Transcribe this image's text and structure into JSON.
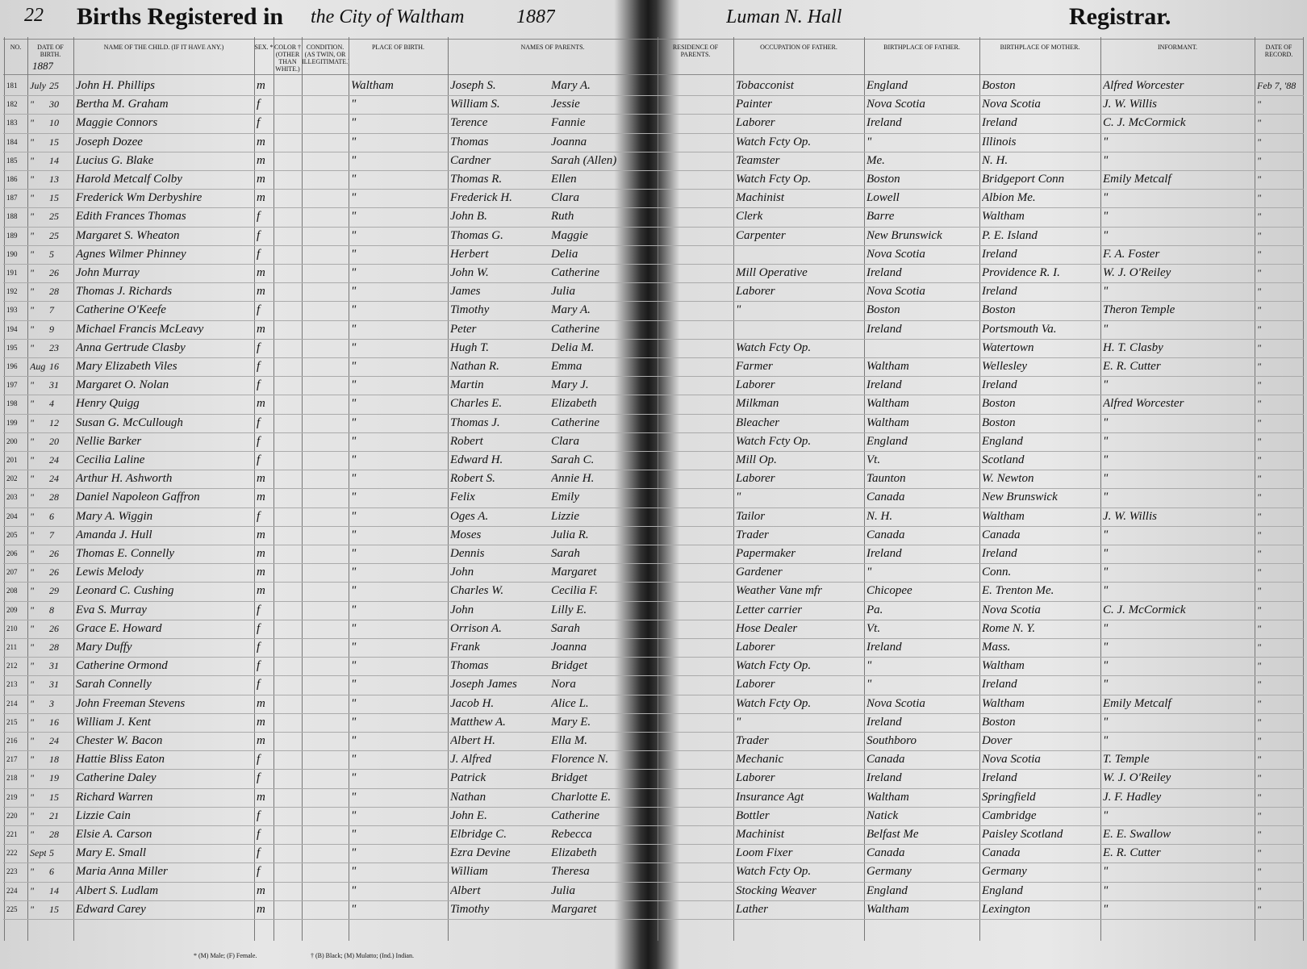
{
  "header": {
    "page_number": "22",
    "title": "Births Registered in",
    "title_city": "the City of Waltham",
    "year": "1887",
    "registrar_name": "Luman N. Hall",
    "registrar_label": "Registrar."
  },
  "table": {
    "columns": [
      "No.",
      "DATE OF BIRTH.",
      "NAME OF THE CHILD. (If it have any.)",
      "SEX. *",
      "COLOR † (other than white.)",
      "CONDITION. (As Twin, or Illegitimate.)",
      "PLACE OF BIRTH.",
      "NAMES OF PARENTS.",
      "RESIDENCE OF PARENTS.",
      "OCCUPATION OF FATHER.",
      "BIRTHPLACE OF FATHER.",
      "BIRTHPLACE OF MOTHER.",
      "INFORMANT.",
      "DATE OF RECORD."
    ],
    "year_note": "1887",
    "rows": [
      [
        "181",
        "July",
        "25",
        "John H. Phillips",
        "m",
        null,
        null,
        "Waltham",
        "Joseph S.",
        "Mary A.",
        null,
        "Tobacconist",
        "England",
        "Boston",
        "Alfred Worcester",
        "Feb 7, '88"
      ],
      [
        "182",
        "\"",
        "30",
        "Bertha M. Graham",
        "f",
        null,
        null,
        "\"",
        "William S.",
        "Jessie",
        null,
        "Painter",
        "Nova Scotia",
        "Nova Scotia",
        "J. W. Willis",
        "\""
      ],
      [
        "183",
        "\"",
        "10",
        "Maggie Connors",
        "f",
        null,
        null,
        "\"",
        "Terence",
        "Fannie",
        null,
        "Laborer",
        "Ireland",
        "Ireland",
        "C. J. McCormick",
        "\""
      ],
      [
        "184",
        "\"",
        "15",
        "Joseph Dozee",
        "m",
        null,
        null,
        "\"",
        "Thomas",
        "Joanna",
        null,
        "Watch Fcty Op.",
        "\"",
        "Illinois",
        "\"",
        "\""
      ],
      [
        "185",
        "\"",
        "14",
        "Lucius G. Blake",
        "m",
        null,
        null,
        "\"",
        "Cardner",
        "Sarah (Allen)",
        null,
        "Teamster",
        "Me.",
        "N. H.",
        "\"",
        "\""
      ],
      [
        "186",
        "\"",
        "13",
        "Harold Metcalf Colby",
        "m",
        null,
        null,
        "\"",
        "Thomas R.",
        "Ellen",
        null,
        "Watch Fcty Op.",
        "Boston",
        "Bridgeport Conn",
        "Emily Metcalf",
        "\""
      ],
      [
        "187",
        "\"",
        "15",
        "Frederick Wm Derbyshire",
        "m",
        null,
        null,
        "\"",
        "Frederick H.",
        "Clara",
        null,
        "Machinist",
        "Lowell",
        "Albion Me.",
        "\"",
        "\""
      ],
      [
        "188",
        "\"",
        "25",
        "Edith Frances Thomas",
        "f",
        null,
        null,
        "\"",
        "John B.",
        "Ruth",
        null,
        "Clerk",
        "Barre",
        "Waltham",
        "\"",
        "\""
      ],
      [
        "189",
        "\"",
        "25",
        "Margaret S. Wheaton",
        "f",
        null,
        null,
        "\"",
        "Thomas G.",
        "Maggie",
        null,
        "Carpenter",
        "New Brunswick",
        "P. E. Island",
        "\"",
        "\""
      ],
      [
        "190",
        "\"",
        "5",
        "Agnes Wilmer Phinney",
        "f",
        null,
        null,
        "\"",
        "Herbert",
        "Delia",
        null,
        null,
        "Nova Scotia",
        "Ireland",
        "F. A. Foster",
        "\""
      ],
      [
        "191",
        "\"",
        "26",
        "John Murray",
        "m",
        null,
        null,
        "\"",
        "John W.",
        "Catherine",
        null,
        "Mill Operative",
        "Ireland",
        "Providence R. I.",
        "W. J. O'Reiley",
        "\""
      ],
      [
        "192",
        "\"",
        "28",
        "Thomas J. Richards",
        "m",
        null,
        null,
        "\"",
        "James",
        "Julia",
        null,
        "Laborer",
        "Nova Scotia",
        "Ireland",
        "\"",
        "\""
      ],
      [
        "193",
        "\"",
        "7",
        "Catherine O'Keefe",
        "f",
        null,
        null,
        "\"",
        "Timothy",
        "Mary A.",
        null,
        "\"",
        "Boston",
        "Boston",
        "Theron Temple",
        "\""
      ],
      [
        "194",
        "\"",
        "9",
        "Michael Francis McLeavy",
        "m",
        null,
        null,
        "\"",
        "Peter",
        "Catherine",
        null,
        null,
        "Ireland",
        "Portsmouth Va.",
        "\"",
        "\""
      ],
      [
        "195",
        "\"",
        "23",
        "Anna Gertrude Clasby",
        "f",
        null,
        null,
        "\"",
        "Hugh T.",
        "Delia M.",
        null,
        "Watch Fcty Op.",
        null,
        "Watertown",
        "H. T. Clasby",
        "\""
      ],
      [
        "196",
        "Aug.",
        "16",
        "Mary Elizabeth Viles",
        "f",
        null,
        null,
        "\"",
        "Nathan R.",
        "Emma",
        null,
        "Farmer",
        "Waltham",
        "Wellesley",
        "E. R. Cutter",
        "\""
      ],
      [
        "197",
        "\"",
        "31",
        "Margaret O. Nolan",
        "f",
        null,
        null,
        "\"",
        "Martin",
        "Mary J.",
        null,
        "Laborer",
        "Ireland",
        "Ireland",
        "\"",
        "\""
      ],
      [
        "198",
        "\"",
        "4",
        "Henry Quigg",
        "m",
        null,
        null,
        "\"",
        "Charles E.",
        "Elizabeth",
        null,
        "Milkman",
        "Waltham",
        "Boston",
        "Alfred Worcester",
        "\""
      ],
      [
        "199",
        "\"",
        "12",
        "Susan G. McCullough",
        "f",
        null,
        null,
        "\"",
        "Thomas J.",
        "Catherine",
        null,
        "Bleacher",
        "Waltham",
        "Boston",
        "\"",
        "\""
      ],
      [
        "200",
        "\"",
        "20",
        "Nellie Barker",
        "f",
        null,
        null,
        "\"",
        "Robert",
        "Clara",
        null,
        "Watch Fcty Op.",
        "England",
        "England",
        "\"",
        "\""
      ],
      [
        "201",
        "\"",
        "24",
        "Cecilia Laline",
        "f",
        null,
        null,
        "\"",
        "Edward H.",
        "Sarah C.",
        null,
        "Mill Op.",
        "Vt.",
        "Scotland",
        "\"",
        "\""
      ],
      [
        "202",
        "\"",
        "24",
        "Arthur H. Ashworth",
        "m",
        null,
        null,
        "\"",
        "Robert S.",
        "Annie H.",
        null,
        "Laborer",
        "Taunton",
        "W. Newton",
        "\"",
        "\""
      ],
      [
        "203",
        "\"",
        "28",
        "Daniel Napoleon Gaffron",
        "m",
        null,
        null,
        "\"",
        "Felix",
        "Emily",
        null,
        "\"",
        "Canada",
        "New Brunswick",
        "\"",
        "\""
      ],
      [
        "204",
        "\"",
        "6",
        "Mary A. Wiggin",
        "f",
        null,
        null,
        "\"",
        "Oges A.",
        "Lizzie",
        null,
        "Tailor",
        "N. H.",
        "Waltham",
        "J. W. Willis",
        "\""
      ],
      [
        "205",
        "\"",
        "7",
        "Amanda J. Hull",
        "m",
        null,
        null,
        "\"",
        "Moses",
        "Julia R.",
        null,
        "Trader",
        "Canada",
        "Canada",
        "\"",
        "\""
      ],
      [
        "206",
        "\"",
        "26",
        "Thomas E. Connelly",
        "m",
        null,
        null,
        "\"",
        "Dennis",
        "Sarah",
        null,
        "Papermaker",
        "Ireland",
        "Ireland",
        "\"",
        "\""
      ],
      [
        "207",
        "\"",
        "26",
        "Lewis Melody",
        "m",
        null,
        null,
        "\"",
        "John",
        "Margaret",
        null,
        "Gardener",
        "\"",
        "Conn.",
        "\"",
        "\""
      ],
      [
        "208",
        "\"",
        "29",
        "Leonard C. Cushing",
        "m",
        null,
        null,
        "\"",
        "Charles W.",
        "Cecilia F.",
        null,
        "Weather Vane mfr",
        "Chicopee",
        "E. Trenton Me.",
        "\"",
        "\""
      ],
      [
        "209",
        "\"",
        "8",
        "Eva S. Murray",
        "f",
        null,
        null,
        "\"",
        "John",
        "Lilly E.",
        null,
        "Letter carrier",
        "Pa.",
        "Nova Scotia",
        "C. J. McCormick",
        "\""
      ],
      [
        "210",
        "\"",
        "26",
        "Grace E. Howard",
        "f",
        null,
        null,
        "\"",
        "Orrison A.",
        "Sarah",
        null,
        "Hose Dealer",
        "Vt.",
        "Rome N. Y.",
        "\"",
        "\""
      ],
      [
        "211",
        "\"",
        "28",
        "Mary Duffy",
        "f",
        null,
        null,
        "\"",
        "Frank",
        "Joanna",
        null,
        "Laborer",
        "Ireland",
        "Mass.",
        "\"",
        "\""
      ],
      [
        "212",
        "\"",
        "31",
        "Catherine Ormond",
        "f",
        null,
        null,
        "\"",
        "Thomas",
        "Bridget",
        null,
        "Watch Fcty Op.",
        "\"",
        "Waltham",
        "\"",
        "\""
      ],
      [
        "213",
        "\"",
        "31",
        "Sarah Connelly",
        "f",
        null,
        null,
        "\"",
        "Joseph James",
        "Nora",
        null,
        "Laborer",
        "\"",
        "Ireland",
        "\"",
        "\""
      ],
      [
        "214",
        "\"",
        "3",
        "John Freeman Stevens",
        "m",
        null,
        null,
        "\"",
        "Jacob H.",
        "Alice L.",
        null,
        "Watch Fcty Op.",
        "Nova Scotia",
        "Waltham",
        "Emily Metcalf",
        "\""
      ],
      [
        "215",
        "\"",
        "16",
        "William J. Kent",
        "m",
        null,
        null,
        "\"",
        "Matthew A.",
        "Mary E.",
        null,
        "\"",
        "Ireland",
        "Boston",
        "\"",
        "\""
      ],
      [
        "216",
        "\"",
        "24",
        "Chester W. Bacon",
        "m",
        null,
        null,
        "\"",
        "Albert H.",
        "Ella M.",
        null,
        "Trader",
        "Southboro",
        "Dover",
        "\"",
        "\""
      ],
      [
        "217",
        "\"",
        "18",
        "Hattie Bliss Eaton",
        "f",
        null,
        null,
        "\"",
        "J. Alfred",
        "Florence N.",
        null,
        "Mechanic",
        "Canada",
        "Nova Scotia",
        "T. Temple",
        "\""
      ],
      [
        "218",
        "\"",
        "19",
        "Catherine Daley",
        "f",
        null,
        null,
        "\"",
        "Patrick",
        "Bridget",
        null,
        "Laborer",
        "Ireland",
        "Ireland",
        "W. J. O'Reiley",
        "\""
      ],
      [
        "219",
        "\"",
        "15",
        "Richard Warren",
        "m",
        null,
        null,
        "\"",
        "Nathan",
        "Charlotte E.",
        null,
        "Insurance Agt",
        "Waltham",
        "Springfield",
        "J. F. Hadley",
        "\""
      ],
      [
        "220",
        "\"",
        "21",
        "Lizzie Cain",
        "f",
        null,
        null,
        "\"",
        "John E.",
        "Catherine",
        null,
        "Bottler",
        "Natick",
        "Cambridge",
        "\"",
        "\""
      ],
      [
        "221",
        "\"",
        "28",
        "Elsie A. Carson",
        "f",
        null,
        null,
        "\"",
        "Elbridge C.",
        "Rebecca",
        null,
        "Machinist",
        "Belfast Me",
        "Paisley Scotland",
        "E. E. Swallow",
        "\""
      ],
      [
        "222",
        "Sept.",
        "5",
        "Mary E. Small",
        "f",
        null,
        null,
        "\"",
        "Ezra Devine",
        "Elizabeth",
        null,
        "Loom Fixer",
        "Canada",
        "Canada",
        "E. R. Cutter",
        "\""
      ],
      [
        "223",
        "\"",
        "6",
        "Maria Anna Miller",
        "f",
        null,
        null,
        "\"",
        "William",
        "Theresa",
        null,
        "Watch Fcty Op.",
        "Germany",
        "Germany",
        "\"",
        "\""
      ],
      [
        "224",
        "\"",
        "14",
        "Albert S. Ludlam",
        "m",
        null,
        null,
        "\"",
        "Albert",
        "Julia",
        null,
        "Stocking Weaver",
        "England",
        "England",
        "\"",
        "\""
      ],
      [
        "225",
        "\"",
        "15",
        "Edward Carey",
        "m",
        null,
        null,
        "\"",
        "Timothy",
        "Margaret",
        null,
        "Lather",
        "Waltham",
        "Lexington",
        "\"",
        "\""
      ]
    ]
  },
  "footer": {
    "sex_note": "* (M) Male; (F) Female.",
    "color_note": "† (B) Black; (M) Mulatto; (Ind.) Indian."
  }
}
